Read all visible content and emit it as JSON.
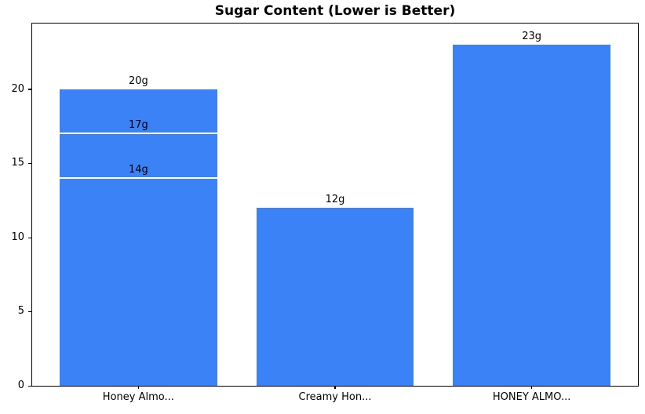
{
  "chart_data": {
    "type": "bar",
    "title": "Sugar Content (Lower is Better)",
    "categories": [
      "Honey Almo...",
      "Creamy Hon...",
      "HONEY ALMO..."
    ],
    "series_values": [
      [
        20,
        17,
        14
      ],
      [
        12
      ],
      [
        23
      ]
    ],
    "bar_labels": [
      [
        "20g",
        "17g",
        "14g"
      ],
      [
        "12g"
      ],
      [
        "23g"
      ]
    ],
    "xlabel": "",
    "ylabel": "",
    "yticks": [
      0,
      5,
      10,
      15,
      20
    ],
    "ytick_labels": [
      "0",
      "5",
      "10",
      "15",
      "20"
    ],
    "ylim": [
      0,
      24.42
    ],
    "xlim": [
      -0.54,
      2.54
    ],
    "bar_width_units": 0.8,
    "bar_color": "#3b82f6",
    "divider_color": "#ffffff",
    "axis_color": "#000000",
    "grid": false,
    "legend_position": "none"
  }
}
